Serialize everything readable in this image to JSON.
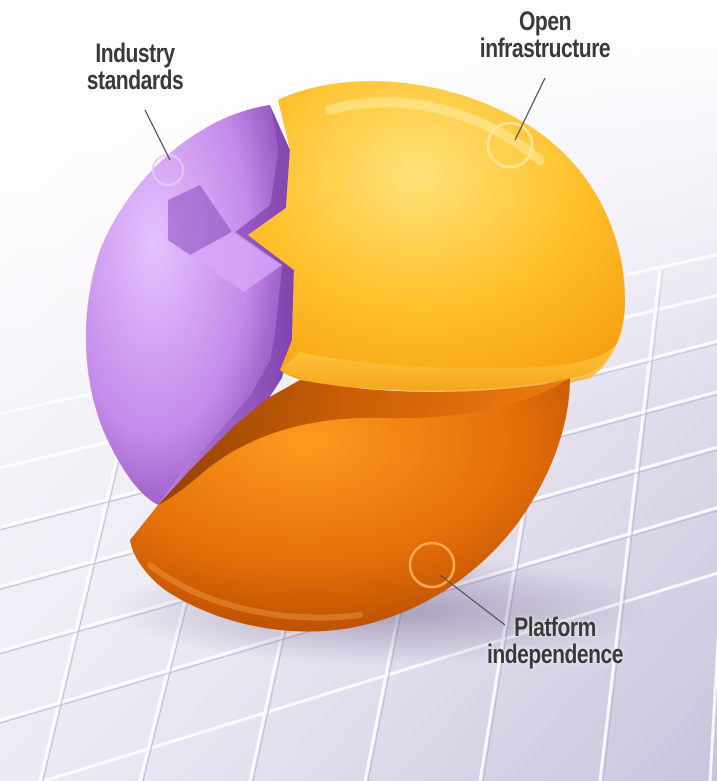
{
  "labels": {
    "industry": {
      "line1": "Industry",
      "line2": "standards"
    },
    "open": {
      "line1": "Open",
      "line2": "infrastructure"
    },
    "platform": {
      "line1": "Platform",
      "line2": "independence"
    }
  },
  "colors": {
    "industry": "#c98df0",
    "open": "#ffc22e",
    "platform": "#e8710a",
    "text": "#3a3a3a",
    "grid": "#a8a2c2"
  },
  "segments": [
    "Industry standards",
    "Open infrastructure",
    "Platform independence"
  ]
}
